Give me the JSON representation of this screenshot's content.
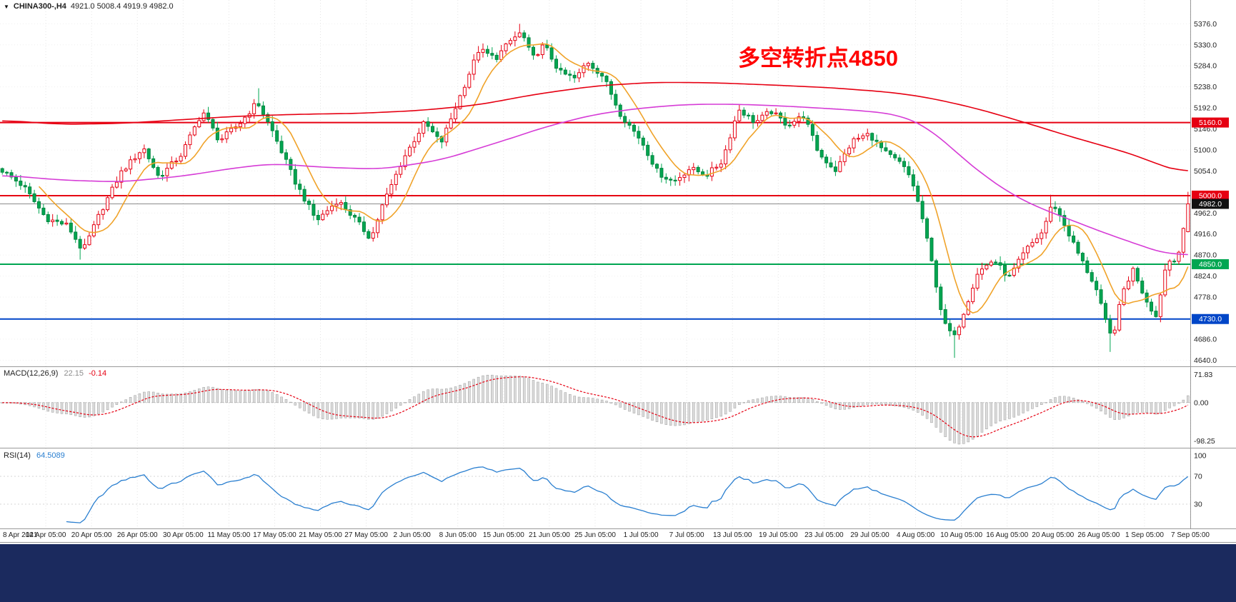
{
  "header": {
    "symbol": "CHINA300-,H4",
    "ohlc": "4921.0 5008.4 4919.9 4982.0"
  },
  "annotation": {
    "text": "多空转折点4850",
    "color": "#ff0000"
  },
  "colors": {
    "background": "#ffffff",
    "grid": "#e4e4e4",
    "separator": "#9a9a9a",
    "text": "#1f1f1f",
    "candle_up_stroke": "#e60012",
    "candle_up_fill": "#ffffff",
    "candle_down_fill": "#00a651",
    "candle_down_stroke": "#00853f",
    "ma_fast": "#f0a32a",
    "ma_medium": "#d63cd6",
    "ma_slow": "#e60012",
    "macd_hist_fill": "#dcdcdc",
    "macd_hist_stroke": "#9e9e9e",
    "macd_signal": "#e60012",
    "rsi_line": "#2a7fd0",
    "footer_bg": "#1b2a5e",
    "badge_text": "#ffffff"
  },
  "chart_data": [
    {
      "id": "price",
      "type": "candlestick",
      "symbol": "CHINA300-",
      "timeframe": "H4",
      "n_candles": 260,
      "y_range": [
        4628,
        5400
      ],
      "y_ticks": [
        5376.0,
        5330.0,
        5284.0,
        5238.0,
        5192.0,
        5146.0,
        5100.0,
        5054.0,
        4962.0,
        4916.0,
        4870.0,
        4824.0,
        4778.0,
        4686.0,
        4640.0
      ],
      "x_labels": [
        "8 Apr 2021",
        "14 Apr 05:00",
        "20 Apr 05:00",
        "26 Apr 05:00",
        "30 Apr 05:00",
        "11 May 05:00",
        "17 May 05:00",
        "21 May 05:00",
        "27 May 05:00",
        "2 Jun 05:00",
        "8 Jun 05:00",
        "15 Jun 05:00",
        "21 Jun 05:00",
        "25 Jun 05:00",
        "1 Jul 05:00",
        "7 Jul 05:00",
        "13 Jul 05:00",
        "19 Jul 05:00",
        "23 Jul 05:00",
        "29 Jul 05:00",
        "4 Aug 05:00",
        "10 Aug 05:00",
        "16 Aug 05:00",
        "20 Aug 05:00",
        "26 Aug 05:00",
        "1 Sep 05:00",
        "7 Sep 05:00"
      ],
      "last_candle": {
        "open": 4921.0,
        "high": 5008.4,
        "low": 4919.9,
        "close": 4982.0
      },
      "hlines": [
        {
          "value": 5160,
          "label": "5160.0",
          "color": "#e60012",
          "width": 2
        },
        {
          "value": 5000,
          "label": "5000.0",
          "color": "#e60012",
          "width": 2
        },
        {
          "value": 4850,
          "label": "4850.0",
          "color": "#00a651",
          "width": 2
        },
        {
          "value": 4730,
          "label": "4730.0",
          "color": "#0046c8",
          "width": 2
        }
      ],
      "current_price": {
        "value": 4982.0,
        "label": "4982.0",
        "line_color": "#8c8c8c",
        "badge_bg": "#111111"
      },
      "close_keyframes": [
        [
          0,
          5055
        ],
        [
          0.018,
          5020
        ],
        [
          0.037,
          4950
        ],
        [
          0.055,
          4935
        ],
        [
          0.068,
          4878
        ],
        [
          0.082,
          4960
        ],
        [
          0.1,
          5050
        ],
        [
          0.119,
          5105
        ],
        [
          0.132,
          5040
        ],
        [
          0.151,
          5090
        ],
        [
          0.169,
          5185
        ],
        [
          0.183,
          5120
        ],
        [
          0.201,
          5160
        ],
        [
          0.215,
          5205
        ],
        [
          0.228,
          5140
        ],
        [
          0.247,
          5030
        ],
        [
          0.265,
          4945
        ],
        [
          0.283,
          4990
        ],
        [
          0.297,
          4950
        ],
        [
          0.311,
          4905
        ],
        [
          0.32,
          4975
        ],
        [
          0.338,
          5080
        ],
        [
          0.356,
          5160
        ],
        [
          0.37,
          5115
        ],
        [
          0.388,
          5230
        ],
        [
          0.402,
          5320
        ],
        [
          0.416,
          5300
        ],
        [
          0.429,
          5340
        ],
        [
          0.438,
          5358
        ],
        [
          0.447,
          5300
        ],
        [
          0.457,
          5330
        ],
        [
          0.47,
          5270
        ],
        [
          0.484,
          5255
        ],
        [
          0.493,
          5295
        ],
        [
          0.507,
          5260
        ],
        [
          0.521,
          5180
        ],
        [
          0.539,
          5120
        ],
        [
          0.553,
          5050
        ],
        [
          0.566,
          5030
        ],
        [
          0.58,
          5060
        ],
        [
          0.594,
          5045
        ],
        [
          0.607,
          5075
        ],
        [
          0.621,
          5190
        ],
        [
          0.635,
          5160
        ],
        [
          0.648,
          5185
        ],
        [
          0.662,
          5155
        ],
        [
          0.676,
          5175
        ],
        [
          0.689,
          5090
        ],
        [
          0.703,
          5055
        ],
        [
          0.717,
          5120
        ],
        [
          0.731,
          5135
        ],
        [
          0.744,
          5095
        ],
        [
          0.758,
          5070
        ],
        [
          0.767,
          5035
        ],
        [
          0.776,
          4950
        ],
        [
          0.785,
          4840
        ],
        [
          0.794,
          4720
        ],
        [
          0.803,
          4690
        ],
        [
          0.813,
          4760
        ],
        [
          0.822,
          4830
        ],
        [
          0.836,
          4860
        ],
        [
          0.849,
          4820
        ],
        [
          0.863,
          4880
        ],
        [
          0.877,
          4920
        ],
        [
          0.886,
          4985
        ],
        [
          0.895,
          4940
        ],
        [
          0.908,
          4870
        ],
        [
          0.922,
          4800
        ],
        [
          0.931,
          4720
        ],
        [
          0.936,
          4685
        ],
        [
          0.945,
          4790
        ],
        [
          0.954,
          4840
        ],
        [
          0.963,
          4780
        ],
        [
          0.973,
          4735
        ],
        [
          0.982,
          4855
        ],
        [
          0.991,
          4865
        ],
        [
          0.995,
          4905
        ],
        [
          1,
          4982
        ]
      ],
      "spikes": [
        {
          "t": 0.066,
          "low": 4860
        },
        {
          "t": 0.215,
          "high": 5235
        },
        {
          "t": 0.438,
          "high": 5376
        },
        {
          "t": 0.803,
          "low": 4645
        },
        {
          "t": 0.886,
          "high": 5002
        },
        {
          "t": 0.936,
          "low": 4658
        }
      ],
      "ma_lines": [
        {
          "name": "fast",
          "color": "#f0a32a",
          "method": "sma",
          "period": 9
        },
        {
          "name": "medium",
          "color": "#d63cd6",
          "keyframes": [
            [
              0,
              5045
            ],
            [
              0.05,
              5034
            ],
            [
              0.1,
              5030
            ],
            [
              0.15,
              5042
            ],
            [
              0.2,
              5062
            ],
            [
              0.23,
              5070
            ],
            [
              0.27,
              5062
            ],
            [
              0.32,
              5058
            ],
            [
              0.37,
              5078
            ],
            [
              0.42,
              5118
            ],
            [
              0.46,
              5152
            ],
            [
              0.5,
              5178
            ],
            [
              0.54,
              5192
            ],
            [
              0.58,
              5200
            ],
            [
              0.62,
              5200
            ],
            [
              0.66,
              5196
            ],
            [
              0.7,
              5190
            ],
            [
              0.73,
              5185
            ],
            [
              0.758,
              5176
            ],
            [
              0.78,
              5150
            ],
            [
              0.794,
              5120
            ],
            [
              0.81,
              5082
            ],
            [
              0.83,
              5040
            ],
            [
              0.85,
              5005
            ],
            [
              0.87,
              4978
            ],
            [
              0.89,
              4958
            ],
            [
              0.91,
              4938
            ],
            [
              0.93,
              4918
            ],
            [
              0.95,
              4900
            ],
            [
              0.97,
              4882
            ],
            [
              0.985,
              4870
            ],
            [
              1,
              4872
            ]
          ]
        },
        {
          "name": "slow",
          "color": "#e60012",
          "keyframes": [
            [
              0,
              5165
            ],
            [
              0.05,
              5156
            ],
            [
              0.1,
              5158
            ],
            [
              0.15,
              5166
            ],
            [
              0.2,
              5174
            ],
            [
              0.25,
              5178
            ],
            [
              0.3,
              5180
            ],
            [
              0.35,
              5186
            ],
            [
              0.4,
              5198
            ],
            [
              0.45,
              5222
            ],
            [
              0.5,
              5240
            ],
            [
              0.55,
              5248
            ],
            [
              0.6,
              5247
            ],
            [
              0.65,
              5242
            ],
            [
              0.7,
              5236
            ],
            [
              0.75,
              5226
            ],
            [
              0.78,
              5215
            ],
            [
              0.82,
              5192
            ],
            [
              0.86,
              5162
            ],
            [
              0.9,
              5130
            ],
            [
              0.93,
              5108
            ],
            [
              0.96,
              5085
            ],
            [
              0.98,
              5062
            ],
            [
              1,
              5050
            ]
          ]
        }
      ]
    },
    {
      "id": "macd",
      "type": "macd-histogram",
      "label": "MACD(12,26,9)",
      "value_main": "22.15",
      "value_signal": "-0.14",
      "params": [
        12,
        26,
        9
      ],
      "y_range": [
        -112,
        82
      ],
      "y_ticks": [
        {
          "v": 71.83,
          "label": "71.83"
        },
        {
          "v": 0,
          "label": "0.00"
        },
        {
          "v": -98.25,
          "label": "-98.25"
        }
      ]
    },
    {
      "id": "rsi",
      "type": "line",
      "label": "RSI(14)",
      "value": "64.5089",
      "period": 14,
      "y_range": [
        -4,
        104
      ],
      "y_ticks": [
        {
          "v": 100,
          "label": "100"
        },
        {
          "v": 70,
          "label": "70"
        },
        {
          "v": 30,
          "label": "30"
        }
      ],
      "levels": [
        70,
        30
      ]
    }
  ]
}
